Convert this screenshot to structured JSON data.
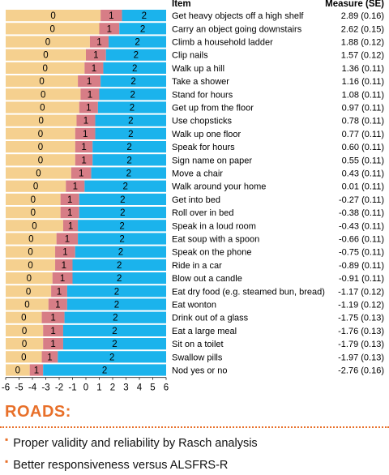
{
  "chart_data": {
    "type": "bar",
    "subtype": "stacked-horizontal-threshold",
    "xlim": [
      -6,
      6
    ],
    "xticks": [
      "-6",
      "-5",
      "-4",
      "-3",
      "-2",
      "-1",
      "0",
      "1",
      "2",
      "3",
      "4",
      "5",
      "6"
    ],
    "category_labels": [
      "0",
      "1",
      "2"
    ],
    "colors": {
      "cat0": "#F5D08F",
      "cat1": "#D77D86",
      "cat2": "#1BB3EC"
    },
    "header": {
      "item": "Item",
      "measure": "Measure (SE)"
    },
    "items": [
      {
        "name": "Get heavy objects off a high shelf",
        "measure": "2.89 (0.16)",
        "t1": 1.1,
        "t2": 2.7
      },
      {
        "name": "Carry an object going downstairs",
        "measure": "2.62 (0.15)",
        "t1": 1.0,
        "t2": 2.5
      },
      {
        "name": "Climb a household ladder",
        "measure": "1.88 (0.12)",
        "t1": 0.3,
        "t2": 1.7
      },
      {
        "name": "Clip nails",
        "measure": "1.57 (0.12)",
        "t1": 0.0,
        "t2": 1.5
      },
      {
        "name": "Walk up a hill",
        "measure": "1.36 (0.11)",
        "t1": -0.1,
        "t2": 1.3
      },
      {
        "name": "Take a shower",
        "measure": "1.16 (0.11)",
        "t1": -0.6,
        "t2": 1.1
      },
      {
        "name": "Stand for hours",
        "measure": "1.08 (0.11)",
        "t1": -0.4,
        "t2": 1.0
      },
      {
        "name": "Get up from the floor",
        "measure": "0.97 (0.11)",
        "t1": -0.5,
        "t2": 0.9
      },
      {
        "name": "Use chopsticks",
        "measure": "0.78 (0.11)",
        "t1": -0.7,
        "t2": 0.7
      },
      {
        "name": "Walk up one floor",
        "measure": "0.77 (0.11)",
        "t1": -0.8,
        "t2": 0.7
      },
      {
        "name": "Speak for hours",
        "measure": "0.60 (0.11)",
        "t1": -0.8,
        "t2": 0.5
      },
      {
        "name": "Sign name on paper",
        "measure": "0.55 (0.11)",
        "t1": -0.8,
        "t2": 0.5
      },
      {
        "name": "Move a chair",
        "measure": "0.43 (0.11)",
        "t1": -1.1,
        "t2": 0.4
      },
      {
        "name": "Walk around your home",
        "measure": "0.01 (0.11)",
        "t1": -1.5,
        "t2": -0.1
      },
      {
        "name": "Get into bed",
        "measure": "-0.27 (0.11)",
        "t1": -1.9,
        "t2": -0.5
      },
      {
        "name": "Roll over in bed",
        "measure": "-0.38 (0.11)",
        "t1": -1.9,
        "t2": -0.5
      },
      {
        "name": "Speak in a loud room",
        "measure": "-0.43 (0.11)",
        "t1": -1.7,
        "t2": -0.6
      },
      {
        "name": "Eat soup with a spoon",
        "measure": "-0.66 (0.11)",
        "t1": -2.2,
        "t2": -0.6
      },
      {
        "name": "Speak on the phone",
        "measure": "-0.75 (0.11)",
        "t1": -2.3,
        "t2": -0.8
      },
      {
        "name": "Ride in a car",
        "measure": "-0.89 (0.11)",
        "t1": -2.3,
        "t2": -1.0
      },
      {
        "name": "Blow out a candle",
        "measure": "-0.91 (0.11)",
        "t1": -2.5,
        "t2": -1.0
      },
      {
        "name": "Eat dry food (e.g. steamed bun, bread)",
        "measure": "-1.17 (0.12)",
        "t1": -2.6,
        "t2": -1.4
      },
      {
        "name": "Eat wonton",
        "measure": "-1.19 (0.12)",
        "t1": -2.8,
        "t2": -1.4
      },
      {
        "name": "Drink out of a glass",
        "measure": "-1.75 (0.13)",
        "t1": -3.3,
        "t2": -1.6
      },
      {
        "name": "Eat a large meal",
        "measure": "-1.76 (0.13)",
        "t1": -3.2,
        "t2": -1.7
      },
      {
        "name": "Sit on a toilet",
        "measure": "-1.79 (0.13)",
        "t1": -3.2,
        "t2": -1.7
      },
      {
        "name": "Swallow pills",
        "measure": "-1.97 (0.13)",
        "t1": -3.3,
        "t2": -2.1
      },
      {
        "name": "Nod yes or no",
        "measure": "-2.76 (0.16)",
        "t1": -4.2,
        "t2": -3.2
      }
    ]
  },
  "roads": {
    "title": "ROADS:",
    "bullets": [
      "Proper validity and reliability by Rasch analysis",
      "Better responsiveness versus ALSFRS-R"
    ],
    "bullet_color": "#E8702A"
  }
}
